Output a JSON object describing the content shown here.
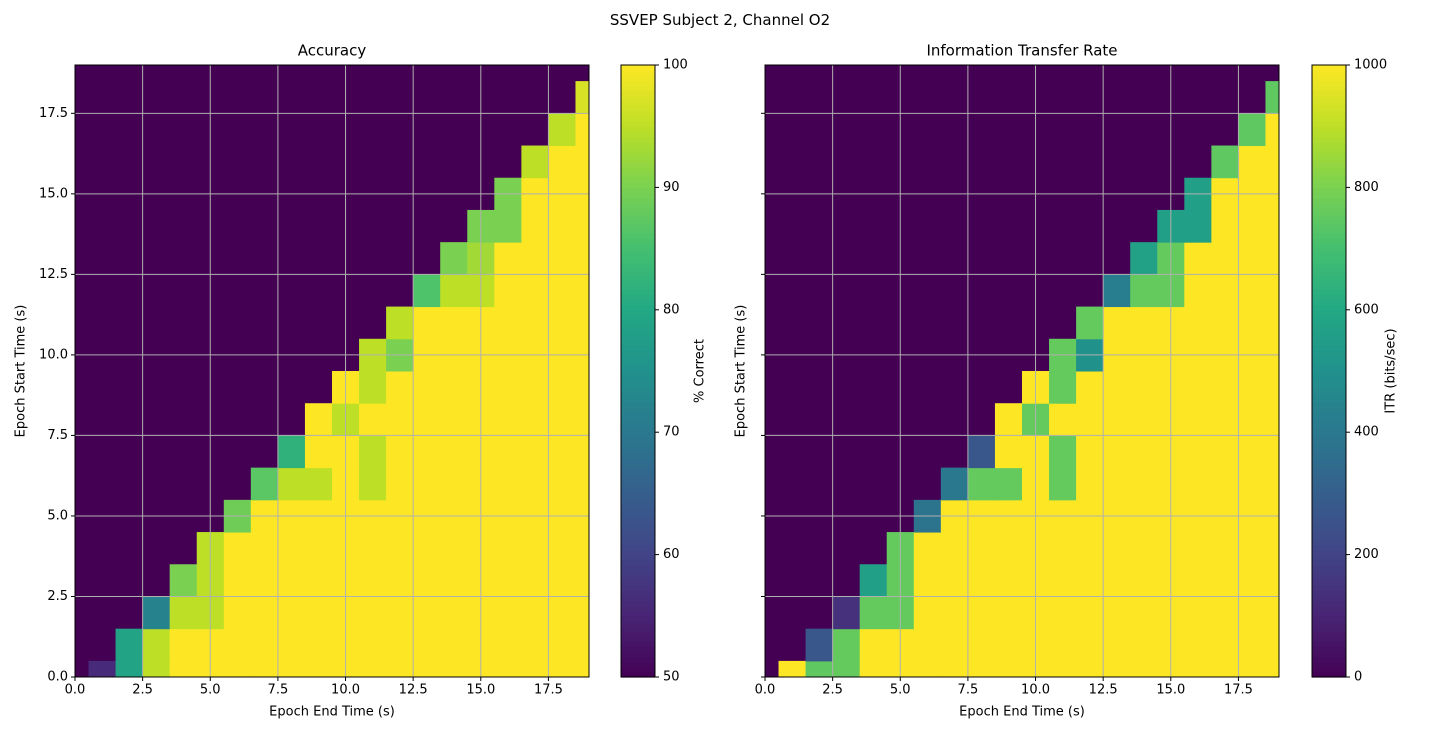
{
  "figure": {
    "title": "SSVEP Subject 2, Channel O2"
  },
  "chart_data": [
    {
      "type": "heatmap",
      "title": "Accuracy",
      "xlabel": "Epoch End Time (s)",
      "ylabel": "Epoch Start Time (s)",
      "xlim": [
        0,
        19
      ],
      "ylim": [
        0,
        19
      ],
      "xticks": [
        "0.0",
        "2.5",
        "5.0",
        "7.5",
        "10.0",
        "12.5",
        "15.0",
        "17.5"
      ],
      "yticks": [
        "0.0",
        "2.5",
        "5.0",
        "7.5",
        "10.0",
        "12.5",
        "15.0",
        "17.5"
      ],
      "grid": true,
      "colormap": "viridis",
      "colorbar": {
        "label": "% Correct",
        "min": 50,
        "max": 100,
        "ticks": [
          "50",
          "60",
          "70",
          "80",
          "90",
          "100"
        ]
      },
      "cell_note": "rows = start time bins (0..18, step 1, half-width 0.5); cols = end time bins (0..18, step 1, half-width 0.5); empty upper-left triangle at minimum",
      "fill_value": 100,
      "empty_value": 50,
      "overrides": [
        [
          0,
          1,
          56
        ],
        [
          0,
          2,
          79
        ],
        [
          0,
          3,
          95
        ],
        [
          1,
          2,
          79
        ],
        [
          1,
          3,
          95
        ],
        [
          2,
          3,
          72
        ],
        [
          2,
          4,
          95
        ],
        [
          2,
          5,
          95
        ],
        [
          3,
          4,
          90
        ],
        [
          3,
          5,
          95
        ],
        [
          4,
          5,
          95
        ],
        [
          5,
          6,
          89
        ],
        [
          6,
          7,
          87
        ],
        [
          6,
          8,
          95
        ],
        [
          6,
          9,
          95
        ],
        [
          6,
          11,
          95
        ],
        [
          7,
          8,
          82
        ],
        [
          7,
          11,
          95
        ],
        [
          8,
          10,
          95
        ],
        [
          9,
          11,
          95
        ],
        [
          10,
          11,
          95
        ],
        [
          10,
          12,
          90
        ],
        [
          11,
          12,
          95
        ],
        [
          12,
          13,
          86
        ],
        [
          12,
          14,
          95
        ],
        [
          12,
          15,
          95
        ],
        [
          13,
          14,
          90
        ],
        [
          13,
          15,
          93
        ],
        [
          14,
          15,
          90
        ],
        [
          14,
          16,
          90
        ],
        [
          15,
          16,
          90
        ],
        [
          16,
          17,
          95
        ],
        [
          17,
          18,
          95
        ],
        [
          18,
          19,
          97
        ]
      ]
    },
    {
      "type": "heatmap",
      "title": "Information Transfer Rate",
      "xlabel": "Epoch End Time (s)",
      "ylabel": "Epoch Start Time (s)",
      "xlim": [
        0,
        19
      ],
      "ylim": [
        0,
        19
      ],
      "xticks": [
        "0.0",
        "2.5",
        "5.0",
        "7.5",
        "10.0",
        "12.5",
        "15.0",
        "17.5"
      ],
      "yticks": [],
      "grid": true,
      "colormap": "viridis",
      "colorbar": {
        "label": "ITR (bits/sec)",
        "min": 0,
        "max": 1000,
        "ticks": [
          "0",
          "200",
          "400",
          "600",
          "800",
          "1000"
        ]
      },
      "fill_value": 1000,
      "empty_value": 0,
      "overrides": [
        [
          0,
          2,
          750
        ],
        [
          0,
          3,
          760
        ],
        [
          1,
          2,
          270
        ],
        [
          1,
          3,
          760
        ],
        [
          2,
          3,
          140
        ],
        [
          2,
          4,
          760
        ],
        [
          2,
          5,
          760
        ],
        [
          3,
          4,
          560
        ],
        [
          3,
          5,
          760
        ],
        [
          4,
          5,
          760
        ],
        [
          5,
          6,
          380
        ],
        [
          6,
          7,
          400
        ],
        [
          6,
          8,
          760
        ],
        [
          6,
          9,
          760
        ],
        [
          6,
          11,
          760
        ],
        [
          7,
          8,
          270
        ],
        [
          7,
          11,
          760
        ],
        [
          8,
          10,
          760
        ],
        [
          9,
          11,
          760
        ],
        [
          10,
          11,
          760
        ],
        [
          10,
          12,
          500
        ],
        [
          11,
          12,
          760
        ],
        [
          12,
          13,
          420
        ],
        [
          12,
          14,
          760
        ],
        [
          12,
          15,
          760
        ],
        [
          13,
          14,
          570
        ],
        [
          13,
          15,
          760
        ],
        [
          14,
          15,
          560
        ],
        [
          14,
          16,
          560
        ],
        [
          15,
          16,
          560
        ],
        [
          16,
          17,
          750
        ],
        [
          17,
          18,
          750
        ],
        [
          18,
          19,
          750
        ]
      ]
    }
  ]
}
